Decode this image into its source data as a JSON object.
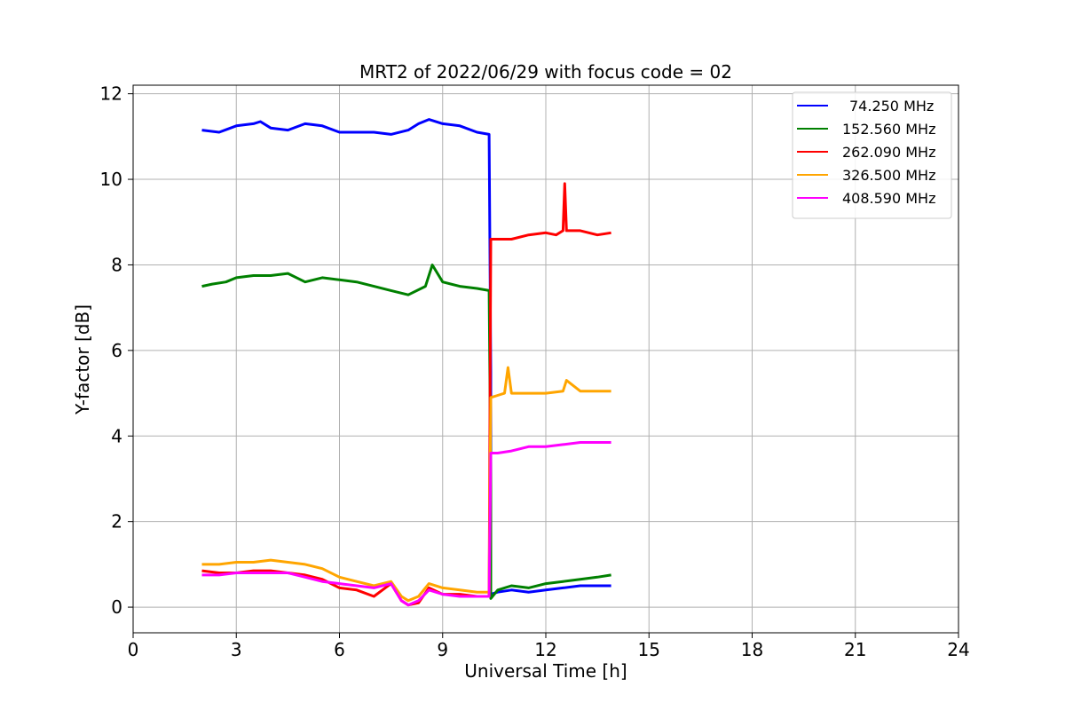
{
  "chart_data": {
    "type": "line",
    "title": "MRT2 of 2022/06/29 with focus code = 02",
    "xlabel": "Universal Time [h]",
    "ylabel": "Y-factor [dB]",
    "xlim": [
      0,
      24
    ],
    "ylim": [
      -0.6,
      12.2
    ],
    "xticks": [
      0,
      3,
      6,
      9,
      12,
      15,
      18,
      21,
      24
    ],
    "yticks": [
      0,
      2,
      4,
      6,
      8,
      10,
      12
    ],
    "grid": true,
    "legend_position": "top-right",
    "series": [
      {
        "name": "  74.250 MHz",
        "color": "#0000ff",
        "points": [
          [
            2.0,
            11.15
          ],
          [
            2.5,
            11.1
          ],
          [
            3.0,
            11.25
          ],
          [
            3.5,
            11.3
          ],
          [
            3.7,
            11.35
          ],
          [
            4.0,
            11.2
          ],
          [
            4.5,
            11.15
          ],
          [
            5.0,
            11.3
          ],
          [
            5.5,
            11.25
          ],
          [
            6.0,
            11.1
          ],
          [
            6.5,
            11.1
          ],
          [
            7.0,
            11.1
          ],
          [
            7.5,
            11.05
          ],
          [
            8.0,
            11.15
          ],
          [
            8.3,
            11.3
          ],
          [
            8.6,
            11.4
          ],
          [
            9.0,
            11.3
          ],
          [
            9.5,
            11.25
          ],
          [
            10.0,
            11.1
          ],
          [
            10.35,
            11.05
          ],
          [
            10.4,
            5.5
          ],
          [
            10.4,
            0.3
          ],
          [
            10.6,
            0.35
          ],
          [
            11.0,
            0.4
          ],
          [
            11.5,
            0.35
          ],
          [
            12.0,
            0.4
          ],
          [
            12.5,
            0.45
          ],
          [
            13.0,
            0.5
          ],
          [
            13.5,
            0.5
          ],
          [
            13.9,
            0.5
          ]
        ]
      },
      {
        "name": "152.560 MHz",
        "color": "#008000",
        "points": [
          [
            2.0,
            7.5
          ],
          [
            2.3,
            7.55
          ],
          [
            2.7,
            7.6
          ],
          [
            3.0,
            7.7
          ],
          [
            3.5,
            7.75
          ],
          [
            4.0,
            7.75
          ],
          [
            4.5,
            7.8
          ],
          [
            5.0,
            7.6
          ],
          [
            5.5,
            7.7
          ],
          [
            6.0,
            7.65
          ],
          [
            6.5,
            7.6
          ],
          [
            7.0,
            7.5
          ],
          [
            7.5,
            7.4
          ],
          [
            8.0,
            7.3
          ],
          [
            8.5,
            7.5
          ],
          [
            8.7,
            8.0
          ],
          [
            9.0,
            7.6
          ],
          [
            9.5,
            7.5
          ],
          [
            10.0,
            7.45
          ],
          [
            10.35,
            7.4
          ],
          [
            10.4,
            3.0
          ],
          [
            10.4,
            0.2
          ],
          [
            10.6,
            0.4
          ],
          [
            11.0,
            0.5
          ],
          [
            11.5,
            0.45
          ],
          [
            12.0,
            0.55
          ],
          [
            12.5,
            0.6
          ],
          [
            13.0,
            0.65
          ],
          [
            13.5,
            0.7
          ],
          [
            13.9,
            0.75
          ]
        ]
      },
      {
        "name": "262.090 MHz",
        "color": "#ff0000",
        "points": [
          [
            2.0,
            0.85
          ],
          [
            2.5,
            0.8
          ],
          [
            3.0,
            0.8
          ],
          [
            3.5,
            0.85
          ],
          [
            4.0,
            0.85
          ],
          [
            4.5,
            0.8
          ],
          [
            5.0,
            0.75
          ],
          [
            5.5,
            0.65
          ],
          [
            6.0,
            0.45
          ],
          [
            6.5,
            0.4
          ],
          [
            7.0,
            0.25
          ],
          [
            7.5,
            0.55
          ],
          [
            7.8,
            0.15
          ],
          [
            8.0,
            0.05
          ],
          [
            8.3,
            0.1
          ],
          [
            8.6,
            0.45
          ],
          [
            9.0,
            0.3
          ],
          [
            9.5,
            0.3
          ],
          [
            10.0,
            0.25
          ],
          [
            10.35,
            0.25
          ],
          [
            10.4,
            8.6
          ],
          [
            10.6,
            8.6
          ],
          [
            11.0,
            8.6
          ],
          [
            11.5,
            8.7
          ],
          [
            12.0,
            8.75
          ],
          [
            12.3,
            8.7
          ],
          [
            12.5,
            8.8
          ],
          [
            12.55,
            9.9
          ],
          [
            12.6,
            8.8
          ],
          [
            13.0,
            8.8
          ],
          [
            13.5,
            8.7
          ],
          [
            13.9,
            8.75
          ]
        ]
      },
      {
        "name": "326.500 MHz",
        "color": "#ffa500",
        "points": [
          [
            2.0,
            1.0
          ],
          [
            2.5,
            1.0
          ],
          [
            3.0,
            1.05
          ],
          [
            3.5,
            1.05
          ],
          [
            4.0,
            1.1
          ],
          [
            4.5,
            1.05
          ],
          [
            5.0,
            1.0
          ],
          [
            5.5,
            0.9
          ],
          [
            6.0,
            0.7
          ],
          [
            6.5,
            0.6
          ],
          [
            7.0,
            0.5
          ],
          [
            7.5,
            0.6
          ],
          [
            7.8,
            0.25
          ],
          [
            8.0,
            0.15
          ],
          [
            8.3,
            0.25
          ],
          [
            8.6,
            0.55
          ],
          [
            9.0,
            0.45
          ],
          [
            9.5,
            0.4
          ],
          [
            10.0,
            0.35
          ],
          [
            10.35,
            0.35
          ],
          [
            10.4,
            4.9
          ],
          [
            10.6,
            4.95
          ],
          [
            10.8,
            5.0
          ],
          [
            10.9,
            5.6
          ],
          [
            11.0,
            5.0
          ],
          [
            11.5,
            5.0
          ],
          [
            12.0,
            5.0
          ],
          [
            12.5,
            5.05
          ],
          [
            12.6,
            5.3
          ],
          [
            13.0,
            5.05
          ],
          [
            13.5,
            5.05
          ],
          [
            13.9,
            5.05
          ]
        ]
      },
      {
        "name": "408.590 MHz",
        "color": "#ff00ff",
        "points": [
          [
            2.0,
            0.75
          ],
          [
            2.5,
            0.75
          ],
          [
            3.0,
            0.8
          ],
          [
            3.5,
            0.8
          ],
          [
            4.0,
            0.8
          ],
          [
            4.5,
            0.8
          ],
          [
            5.0,
            0.7
          ],
          [
            5.5,
            0.6
          ],
          [
            6.0,
            0.55
          ],
          [
            6.5,
            0.5
          ],
          [
            7.0,
            0.45
          ],
          [
            7.5,
            0.55
          ],
          [
            7.8,
            0.15
          ],
          [
            8.0,
            0.05
          ],
          [
            8.3,
            0.15
          ],
          [
            8.6,
            0.4
          ],
          [
            9.0,
            0.3
          ],
          [
            9.5,
            0.25
          ],
          [
            10.0,
            0.25
          ],
          [
            10.35,
            0.25
          ],
          [
            10.4,
            3.6
          ],
          [
            10.6,
            3.6
          ],
          [
            11.0,
            3.65
          ],
          [
            11.5,
            3.75
          ],
          [
            12.0,
            3.75
          ],
          [
            12.5,
            3.8
          ],
          [
            13.0,
            3.85
          ],
          [
            13.5,
            3.85
          ],
          [
            13.9,
            3.85
          ]
        ]
      }
    ]
  }
}
